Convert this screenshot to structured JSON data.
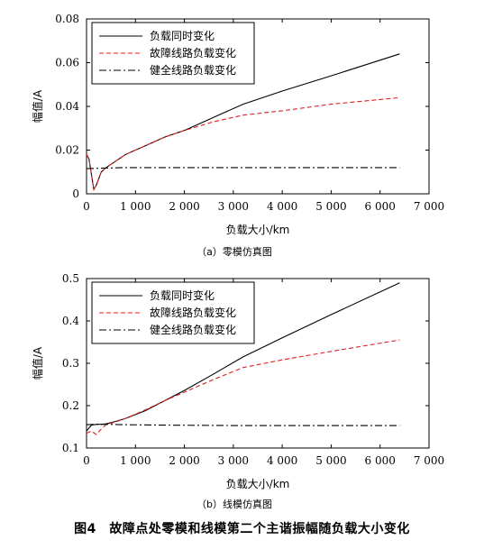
{
  "caption": "图4　故障点处零模和线模第二个主谐振幅随负载大小变化",
  "chart_data": [
    {
      "type": "line",
      "subtitle": "（a）零模仿真图",
      "xlabel": "负载大小/km",
      "ylabel": "幅值/A",
      "xlim": [
        0,
        7000
      ],
      "ylim": [
        0,
        0.08
      ],
      "xticks": [
        0,
        1000,
        2000,
        3000,
        4000,
        5000,
        6000,
        7000
      ],
      "xtick_labels": [
        "0",
        "1 000",
        "2 000",
        "3 000",
        "4 000",
        "5 000",
        "6 000",
        "7 000"
      ],
      "yticks": [
        0,
        0.02,
        0.04,
        0.06,
        0.08
      ],
      "ytick_labels": [
        "0",
        "0.02",
        "0.04",
        "0.06",
        "0.08"
      ],
      "legend_position": "top-left",
      "series": [
        {
          "name": "负载同时变化",
          "color": "#000000",
          "dash": "solid",
          "x": [
            0,
            50,
            100,
            150,
            200,
            250,
            300,
            400,
            600,
            800,
            1200,
            1600,
            2000,
            2600,
            3200,
            4000,
            5000,
            6400
          ],
          "y": [
            0.018,
            0.016,
            0.009,
            0.002,
            0.004,
            0.007,
            0.01,
            0.012,
            0.015,
            0.018,
            0.022,
            0.026,
            0.029,
            0.035,
            0.041,
            0.047,
            0.054,
            0.064
          ]
        },
        {
          "name": "故障线路负载变化",
          "color": "#e02020",
          "dash": "dashed",
          "x": [
            0,
            50,
            100,
            150,
            200,
            250,
            300,
            400,
            600,
            800,
            1200,
            1600,
            2000,
            2600,
            3200,
            4000,
            5000,
            6400
          ],
          "y": [
            0.018,
            0.016,
            0.009,
            0.002,
            0.004,
            0.007,
            0.01,
            0.012,
            0.015,
            0.018,
            0.022,
            0.026,
            0.029,
            0.033,
            0.036,
            0.038,
            0.041,
            0.044
          ]
        },
        {
          "name": "健全线路负载变化",
          "color": "#000000",
          "dash": "dashdot",
          "x": [
            0,
            400,
            800,
            1600,
            3200,
            4800,
            6400
          ],
          "y": [
            0.0115,
            0.0118,
            0.012,
            0.012,
            0.012,
            0.012,
            0.012
          ]
        }
      ]
    },
    {
      "type": "line",
      "subtitle": "（b）线模仿真图",
      "xlabel": "负载大小/km",
      "ylabel": "幅值/A",
      "xlim": [
        0,
        7000
      ],
      "ylim": [
        0.1,
        0.5
      ],
      "xticks": [
        0,
        1000,
        2000,
        3000,
        4000,
        5000,
        6000,
        7000
      ],
      "xtick_labels": [
        "0",
        "1 000",
        "2 000",
        "3 000",
        "4 000",
        "5 000",
        "6 000",
        "7 000"
      ],
      "yticks": [
        0.1,
        0.2,
        0.3,
        0.4,
        0.5
      ],
      "ytick_labels": [
        "0.1",
        "0.2",
        "0.3",
        "0.4",
        "0.5"
      ],
      "legend_position": "top-left",
      "series": [
        {
          "name": "负载同时变化",
          "color": "#000000",
          "dash": "solid",
          "x": [
            0,
            100,
            200,
            300,
            400,
            600,
            800,
            1200,
            1600,
            2000,
            2600,
            3200,
            4000,
            5000,
            6400
          ],
          "y": [
            0.14,
            0.154,
            0.156,
            0.156,
            0.157,
            0.163,
            0.17,
            0.188,
            0.212,
            0.236,
            0.275,
            0.315,
            0.36,
            0.415,
            0.49
          ]
        },
        {
          "name": "故障线路负载变化",
          "color": "#e02020",
          "dash": "dashed",
          "x": [
            0,
            100,
            200,
            300,
            400,
            600,
            800,
            1200,
            1600,
            2000,
            2600,
            3200,
            4000,
            5000,
            6400
          ],
          "y": [
            0.135,
            0.14,
            0.132,
            0.145,
            0.155,
            0.162,
            0.17,
            0.19,
            0.212,
            0.232,
            0.262,
            0.29,
            0.308,
            0.328,
            0.355
          ]
        },
        {
          "name": "健全线路负载变化",
          "color": "#000000",
          "dash": "dashdot",
          "x": [
            0,
            200,
            400,
            800,
            1600,
            3200,
            4800,
            6400
          ],
          "y": [
            0.155,
            0.156,
            0.156,
            0.155,
            0.154,
            0.153,
            0.153,
            0.153
          ]
        }
      ]
    }
  ]
}
